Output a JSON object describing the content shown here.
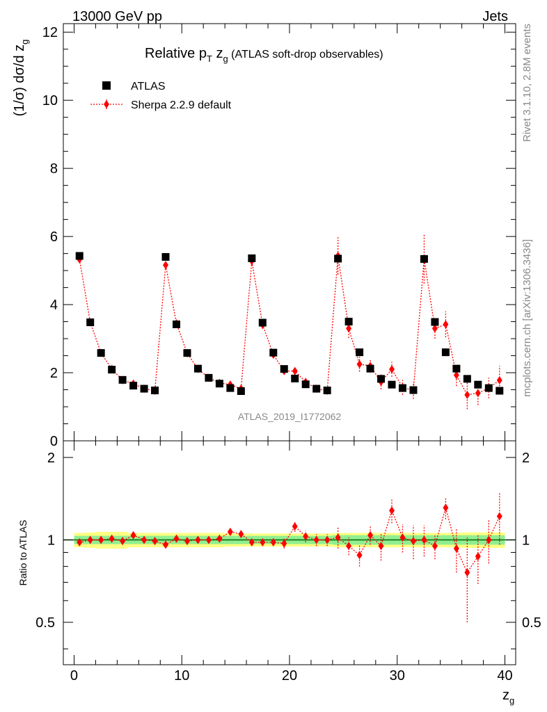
{
  "header": {
    "energy_label": "13000 GeV pp",
    "process_label": "Jets"
  },
  "side_labels": {
    "rivet": "Rivet 3.1.10,  2.8M events",
    "mcplots": "mcplots.cern.ch [arXiv:1306.3436]"
  },
  "watermark": "ATLAS_2019_I1772062",
  "colors": {
    "data": "#000000",
    "mc": "#ff0000",
    "band_inner": "#90ee90",
    "band_outer": "#ffff80",
    "ratio_line": "#006400"
  },
  "chart_data": [
    {
      "type": "scatter",
      "panel": "main",
      "title_parts": {
        "main": "Relative p",
        "sub1": "T",
        "mid": " z",
        "sub2": "g",
        "tail": " (ATLAS soft-drop observables)"
      },
      "ylabel_parts": {
        "main": "(1/σ) dσ/d z",
        "sub": "g"
      },
      "xlim": [
        -1,
        41
      ],
      "ylim": [
        0,
        12.25
      ],
      "yticks": [
        0,
        2,
        4,
        6,
        8,
        10,
        12
      ],
      "legend": {
        "placement": "top-left"
      },
      "series": [
        {
          "name": "ATLAS",
          "marker": "square",
          "x": [
            0.5,
            1.5,
            2.5,
            3.5,
            4.5,
            5.5,
            6.5,
            7.5,
            8.5,
            9.5,
            10.5,
            11.5,
            12.5,
            13.5,
            14.5,
            15.5,
            16.5,
            17.5,
            18.5,
            19.5,
            20.5,
            21.5,
            22.5,
            23.5,
            24.5,
            25.5,
            26.5,
            27.5,
            28.5,
            29.5,
            30.5,
            31.5,
            32.5,
            33.5,
            34.5,
            35.5,
            36.5,
            37.5,
            38.5,
            39.5
          ],
          "y": [
            5.43,
            3.48,
            2.58,
            2.09,
            1.79,
            1.62,
            1.53,
            1.48,
            5.4,
            3.42,
            2.58,
            2.12,
            1.85,
            1.68,
            1.55,
            1.46,
            5.36,
            3.47,
            2.59,
            2.11,
            1.83,
            1.66,
            1.53,
            1.48,
            5.35,
            3.5,
            2.6,
            2.12,
            1.82,
            1.65,
            1.55,
            1.49,
            5.34,
            3.49,
            2.6,
            2.12,
            1.82,
            1.65,
            1.55,
            1.47
          ]
        },
        {
          "name": "Sherpa 2.2.9 default",
          "marker": "diamond",
          "x": [
            0.5,
            1.5,
            2.5,
            3.5,
            4.5,
            5.5,
            6.5,
            7.5,
            8.5,
            9.5,
            10.5,
            11.5,
            12.5,
            13.5,
            14.5,
            15.5,
            16.5,
            17.5,
            18.5,
            19.5,
            20.5,
            21.5,
            22.5,
            23.5,
            24.5,
            25.5,
            26.5,
            27.5,
            28.5,
            29.5,
            30.5,
            31.5,
            32.5,
            33.5,
            34.5,
            35.5,
            36.5,
            37.5,
            38.5,
            39.5
          ],
          "y": [
            5.33,
            3.48,
            2.58,
            2.11,
            1.78,
            1.68,
            1.53,
            1.47,
            5.16,
            3.45,
            2.57,
            2.11,
            1.85,
            1.7,
            1.65,
            1.53,
            5.28,
            3.41,
            2.53,
            2.05,
            2.05,
            1.73,
            1.53,
            1.47,
            5.43,
            3.3,
            2.25,
            2.2,
            1.73,
            2.1,
            1.57,
            1.48,
            5.34,
            3.3,
            3.42,
            1.93,
            1.35,
            1.4,
            1.55,
            1.78
          ],
          "yerr": [
            0.05,
            0.04,
            0.03,
            0.03,
            0.03,
            0.03,
            0.03,
            0.03,
            0.08,
            0.06,
            0.05,
            0.05,
            0.04,
            0.04,
            0.04,
            0.04,
            0.15,
            0.12,
            0.1,
            0.1,
            0.12,
            0.1,
            0.08,
            0.08,
            0.55,
            0.28,
            0.22,
            0.2,
            0.22,
            0.22,
            0.22,
            0.25,
            0.72,
            0.3,
            0.38,
            0.32,
            0.42,
            0.35,
            0.3,
            0.42
          ]
        }
      ]
    },
    {
      "type": "scatter",
      "panel": "ratio",
      "ylabel": "Ratio to ATLAS",
      "xlabel_parts": {
        "main": "z",
        "sub": "g"
      },
      "xlim": [
        -1,
        41
      ],
      "xticks": [
        0,
        10,
        20,
        30,
        40
      ],
      "ylim": [
        0.35,
        2.3
      ],
      "yticks": [
        0.5,
        1,
        2
      ],
      "ytick_labels": [
        "0.5",
        "1",
        "2"
      ],
      "reference": 1,
      "band_inner": [
        0.035,
        0.035,
        0.035,
        0.035,
        0.035,
        0.035,
        0.035,
        0.035,
        0.035,
        0.035,
        0.035,
        0.035,
        0.035,
        0.035,
        0.035,
        0.035,
        0.035,
        0.035,
        0.035,
        0.035,
        0.035,
        0.035,
        0.035,
        0.035,
        0.04,
        0.04,
        0.04,
        0.04,
        0.04,
        0.04,
        0.04,
        0.04,
        0.04,
        0.04,
        0.04,
        0.04,
        0.04,
        0.04,
        0.04,
        0.04
      ],
      "band_outer": [
        0.06,
        0.065,
        0.07,
        0.07,
        0.07,
        0.06,
        0.06,
        0.06,
        0.06,
        0.06,
        0.06,
        0.06,
        0.06,
        0.06,
        0.055,
        0.055,
        0.055,
        0.055,
        0.055,
        0.055,
        0.055,
        0.055,
        0.055,
        0.055,
        0.06,
        0.06,
        0.06,
        0.06,
        0.06,
        0.06,
        0.06,
        0.06,
        0.06,
        0.06,
        0.06,
        0.06,
        0.065,
        0.065,
        0.065,
        0.065
      ],
      "series": [
        {
          "name": "Sherpa 2.2.9 default",
          "x": [
            0.5,
            1.5,
            2.5,
            3.5,
            4.5,
            5.5,
            6.5,
            7.5,
            8.5,
            9.5,
            10.5,
            11.5,
            12.5,
            13.5,
            14.5,
            15.5,
            16.5,
            17.5,
            18.5,
            19.5,
            20.5,
            21.5,
            22.5,
            23.5,
            24.5,
            25.5,
            26.5,
            27.5,
            28.5,
            29.5,
            30.5,
            31.5,
            32.5,
            33.5,
            34.5,
            35.5,
            36.5,
            37.5,
            38.5,
            39.5
          ],
          "y": [
            0.98,
            1.0,
            1.0,
            1.01,
            0.99,
            1.04,
            1.0,
            0.99,
            0.96,
            1.01,
            0.99,
            1.0,
            1.0,
            1.01,
            1.07,
            1.05,
            0.98,
            0.98,
            0.98,
            0.97,
            1.12,
            1.03,
            1.0,
            1.0,
            1.02,
            0.95,
            0.88,
            1.04,
            0.95,
            1.28,
            1.02,
            0.99,
            1.0,
            0.95,
            1.31,
            0.93,
            0.76,
            0.87,
            1.0,
            1.22
          ],
          "yerr": [
            0.01,
            0.01,
            0.01,
            0.01,
            0.01,
            0.01,
            0.01,
            0.01,
            0.01,
            0.01,
            0.01,
            0.01,
            0.01,
            0.01,
            0.02,
            0.02,
            0.02,
            0.02,
            0.03,
            0.04,
            0.05,
            0.05,
            0.05,
            0.05,
            0.09,
            0.07,
            0.08,
            0.08,
            0.11,
            0.13,
            0.12,
            0.14,
            0.13,
            0.1,
            0.12,
            0.17,
            0.26,
            0.18,
            0.18,
            0.26
          ]
        }
      ]
    }
  ]
}
